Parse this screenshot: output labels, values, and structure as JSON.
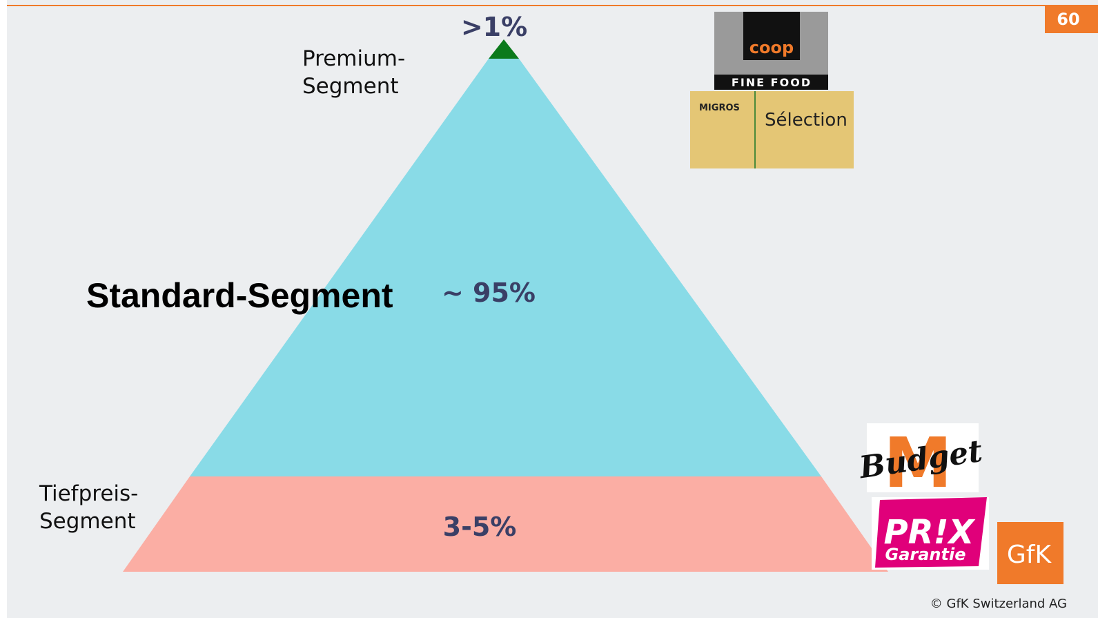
{
  "page_number": "60",
  "segments": {
    "premium": {
      "label": [
        "Premium-",
        "Segment"
      ],
      "share": ">1%"
    },
    "standard": {
      "label": "Standard-Segment",
      "share": "~ 95%"
    },
    "low_price": {
      "label": [
        "Tiefpreis-",
        "Segment"
      ],
      "share": "3-5%"
    }
  },
  "logos": {
    "coop": {
      "brand": "coop",
      "line": "FINE FOOD"
    },
    "migros_selection": {
      "brand": "MIGROS",
      "line": "Sélection"
    },
    "m_budget": {
      "letter": "M",
      "line": "Budget"
    },
    "prix_garantie": {
      "top": "PR!X",
      "bottom": "Garantie"
    },
    "gfk": "GfK"
  },
  "copyright": "© GfK Switzerland AG"
}
